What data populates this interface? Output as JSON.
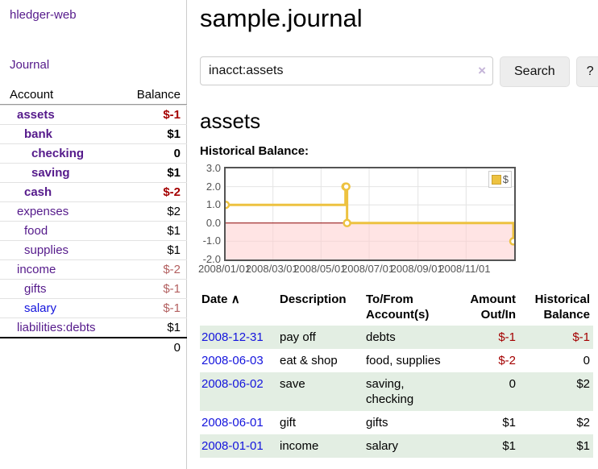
{
  "app": {
    "title": "hledger-web",
    "nav_journal": "Journal"
  },
  "sidebar": {
    "headers": {
      "account": "Account",
      "balance": "Balance"
    },
    "accounts": [
      {
        "name": "assets",
        "balance": "$-1"
      },
      {
        "name": "bank",
        "balance": "$1"
      },
      {
        "name": "checking",
        "balance": "0"
      },
      {
        "name": "saving",
        "balance": "$1"
      },
      {
        "name": "cash",
        "balance": "$-2"
      },
      {
        "name": "expenses",
        "balance": "$2"
      },
      {
        "name": "food",
        "balance": "$1"
      },
      {
        "name": "supplies",
        "balance": "$1"
      },
      {
        "name": "income",
        "balance": "$-2"
      },
      {
        "name": "gifts",
        "balance": "$-1"
      },
      {
        "name": "salary",
        "balance": "$-1"
      },
      {
        "name": "liabilities:debts",
        "balance": "$1"
      }
    ],
    "total": "0"
  },
  "header": {
    "title": "sample.journal"
  },
  "search": {
    "value": "inacct:assets",
    "clear_icon": "×",
    "button_label": "Search",
    "help_label": "?"
  },
  "account_page": {
    "heading": "assets",
    "chart_title": "Historical Balance:"
  },
  "chart_data": {
    "type": "line",
    "step": true,
    "title": "Historical Balance",
    "series": [
      {
        "name": "$",
        "points": [
          [
            "2008-01-01",
            1
          ],
          [
            "2008-06-01",
            2
          ],
          [
            "2008-06-02",
            2
          ],
          [
            "2008-06-03",
            0
          ],
          [
            "2008-12-31",
            -1
          ]
        ]
      }
    ],
    "xmin": "2008-01-01",
    "xmax": "2009-01-01",
    "ylim": [
      -2,
      3
    ],
    "yticks": [
      3.0,
      2.0,
      1.0,
      0.0,
      -1.0,
      -2.0
    ],
    "ytick_labels": [
      "3.0",
      "2.0",
      "1.0",
      "0.0",
      "-1.0",
      "-2.0"
    ],
    "xticks": [
      "2008-01-01",
      "2008-03-01",
      "2008-05-01",
      "2008-07-01",
      "2008-09-01",
      "2008-11-01"
    ],
    "xtick_labels": [
      "2008/01/01",
      "2008/03/01",
      "2008/05/01",
      "2008/07/01",
      "2008/09/01",
      "2008/11/01"
    ],
    "legend": {
      "label": "$",
      "position": "top-right"
    },
    "grid": true,
    "colors": {
      "line": "#edc240",
      "marker_fill": "#ffffff",
      "negative_region": "rgba(255,205,205,0.55)",
      "zero_line": "#8b0000",
      "gridline": "#e4e4e4",
      "border": "#545454"
    }
  },
  "register": {
    "headers": {
      "date": "Date",
      "sort_caret": "∧",
      "description": "Description",
      "accounts": "To/From Account(s)",
      "amount": "Amount Out/In",
      "balance": "Historical Balance"
    },
    "rows": [
      {
        "date": "2008-12-31",
        "description": "pay off",
        "accounts": "debts",
        "amount": "$-1",
        "balance": "$-1"
      },
      {
        "date": "2008-06-03",
        "description": "eat & shop",
        "accounts": "food, supplies",
        "amount": "$-2",
        "balance": "0"
      },
      {
        "date": "2008-06-02",
        "description": "save",
        "accounts": "saving, checking",
        "amount": "0",
        "balance": "$2"
      },
      {
        "date": "2008-06-01",
        "description": "gift",
        "accounts": "gifts",
        "amount": "$1",
        "balance": "$2"
      },
      {
        "date": "2008-01-01",
        "description": "income",
        "accounts": "salary",
        "amount": "$1",
        "balance": "$1"
      }
    ]
  },
  "colors": {
    "purple_link": "#551a8b",
    "blue_link": "#1414dd",
    "negative": "#a40000",
    "negative_light": "#b36060",
    "row_stripe": "#e3eee3",
    "accent_yellow": "#edc240"
  }
}
